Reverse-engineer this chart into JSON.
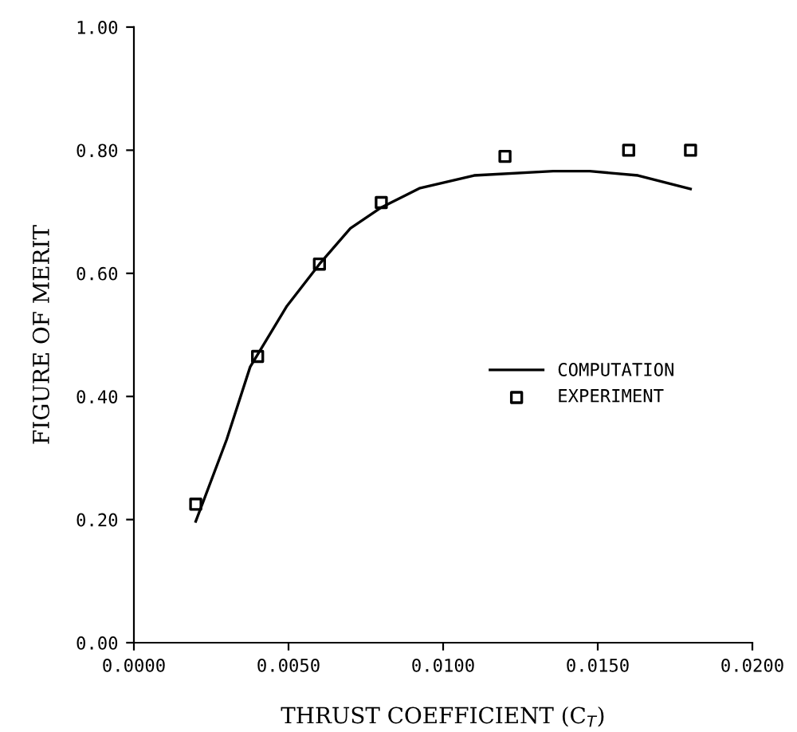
{
  "chart_data": {
    "type": "line",
    "xlabel": "THRUST COEFFICIENT (C$_{T}$)",
    "ylabel": "FIGURE OF MERIT",
    "series": [
      {
        "name": "COMPUTATION",
        "color": "#000000",
        "marker": "none",
        "line_style": "solid",
        "x": [
          0.002,
          0.003,
          0.00376,
          0.00495,
          0.006,
          0.007,
          0.008,
          0.00923,
          0.011,
          0.01356,
          0.01474,
          0.0163,
          0.018
        ],
        "values": [
          0.197,
          0.33,
          0.448,
          0.547,
          0.615,
          0.673,
          0.707,
          0.738,
          0.759,
          0.766,
          0.766,
          0.759,
          0.737
        ]
      },
      {
        "name": "EXPERIMENT",
        "type": "scatter",
        "color": "#000000",
        "marker": "square",
        "x": [
          0.002,
          0.004,
          0.006,
          0.008,
          0.012,
          0.016,
          0.018
        ],
        "values": [
          0.225,
          0.465,
          0.615,
          0.715,
          0.79,
          0.8,
          0.8
        ]
      }
    ],
    "xlim": [
      0,
      0.02
    ],
    "ylim": [
      0,
      1
    ],
    "xticks": [
      {
        "value": 0,
        "label": "0.0000"
      },
      {
        "value": 0.005,
        "label": "0.0050"
      },
      {
        "value": 0.01,
        "label": "0.0100"
      },
      {
        "value": 0.015,
        "label": "0.0150"
      },
      {
        "value": 0.02,
        "label": "0.0200"
      }
    ],
    "yticks": [
      {
        "value": 0,
        "label": "0.00"
      },
      {
        "value": 0.2,
        "label": "0.20"
      },
      {
        "value": 0.4,
        "label": "0.40"
      },
      {
        "value": 0.6,
        "label": "0.60"
      },
      {
        "value": 0.8,
        "label": "0.80"
      },
      {
        "value": 1,
        "label": "1.00"
      }
    ],
    "grid": false,
    "legend": "right"
  }
}
